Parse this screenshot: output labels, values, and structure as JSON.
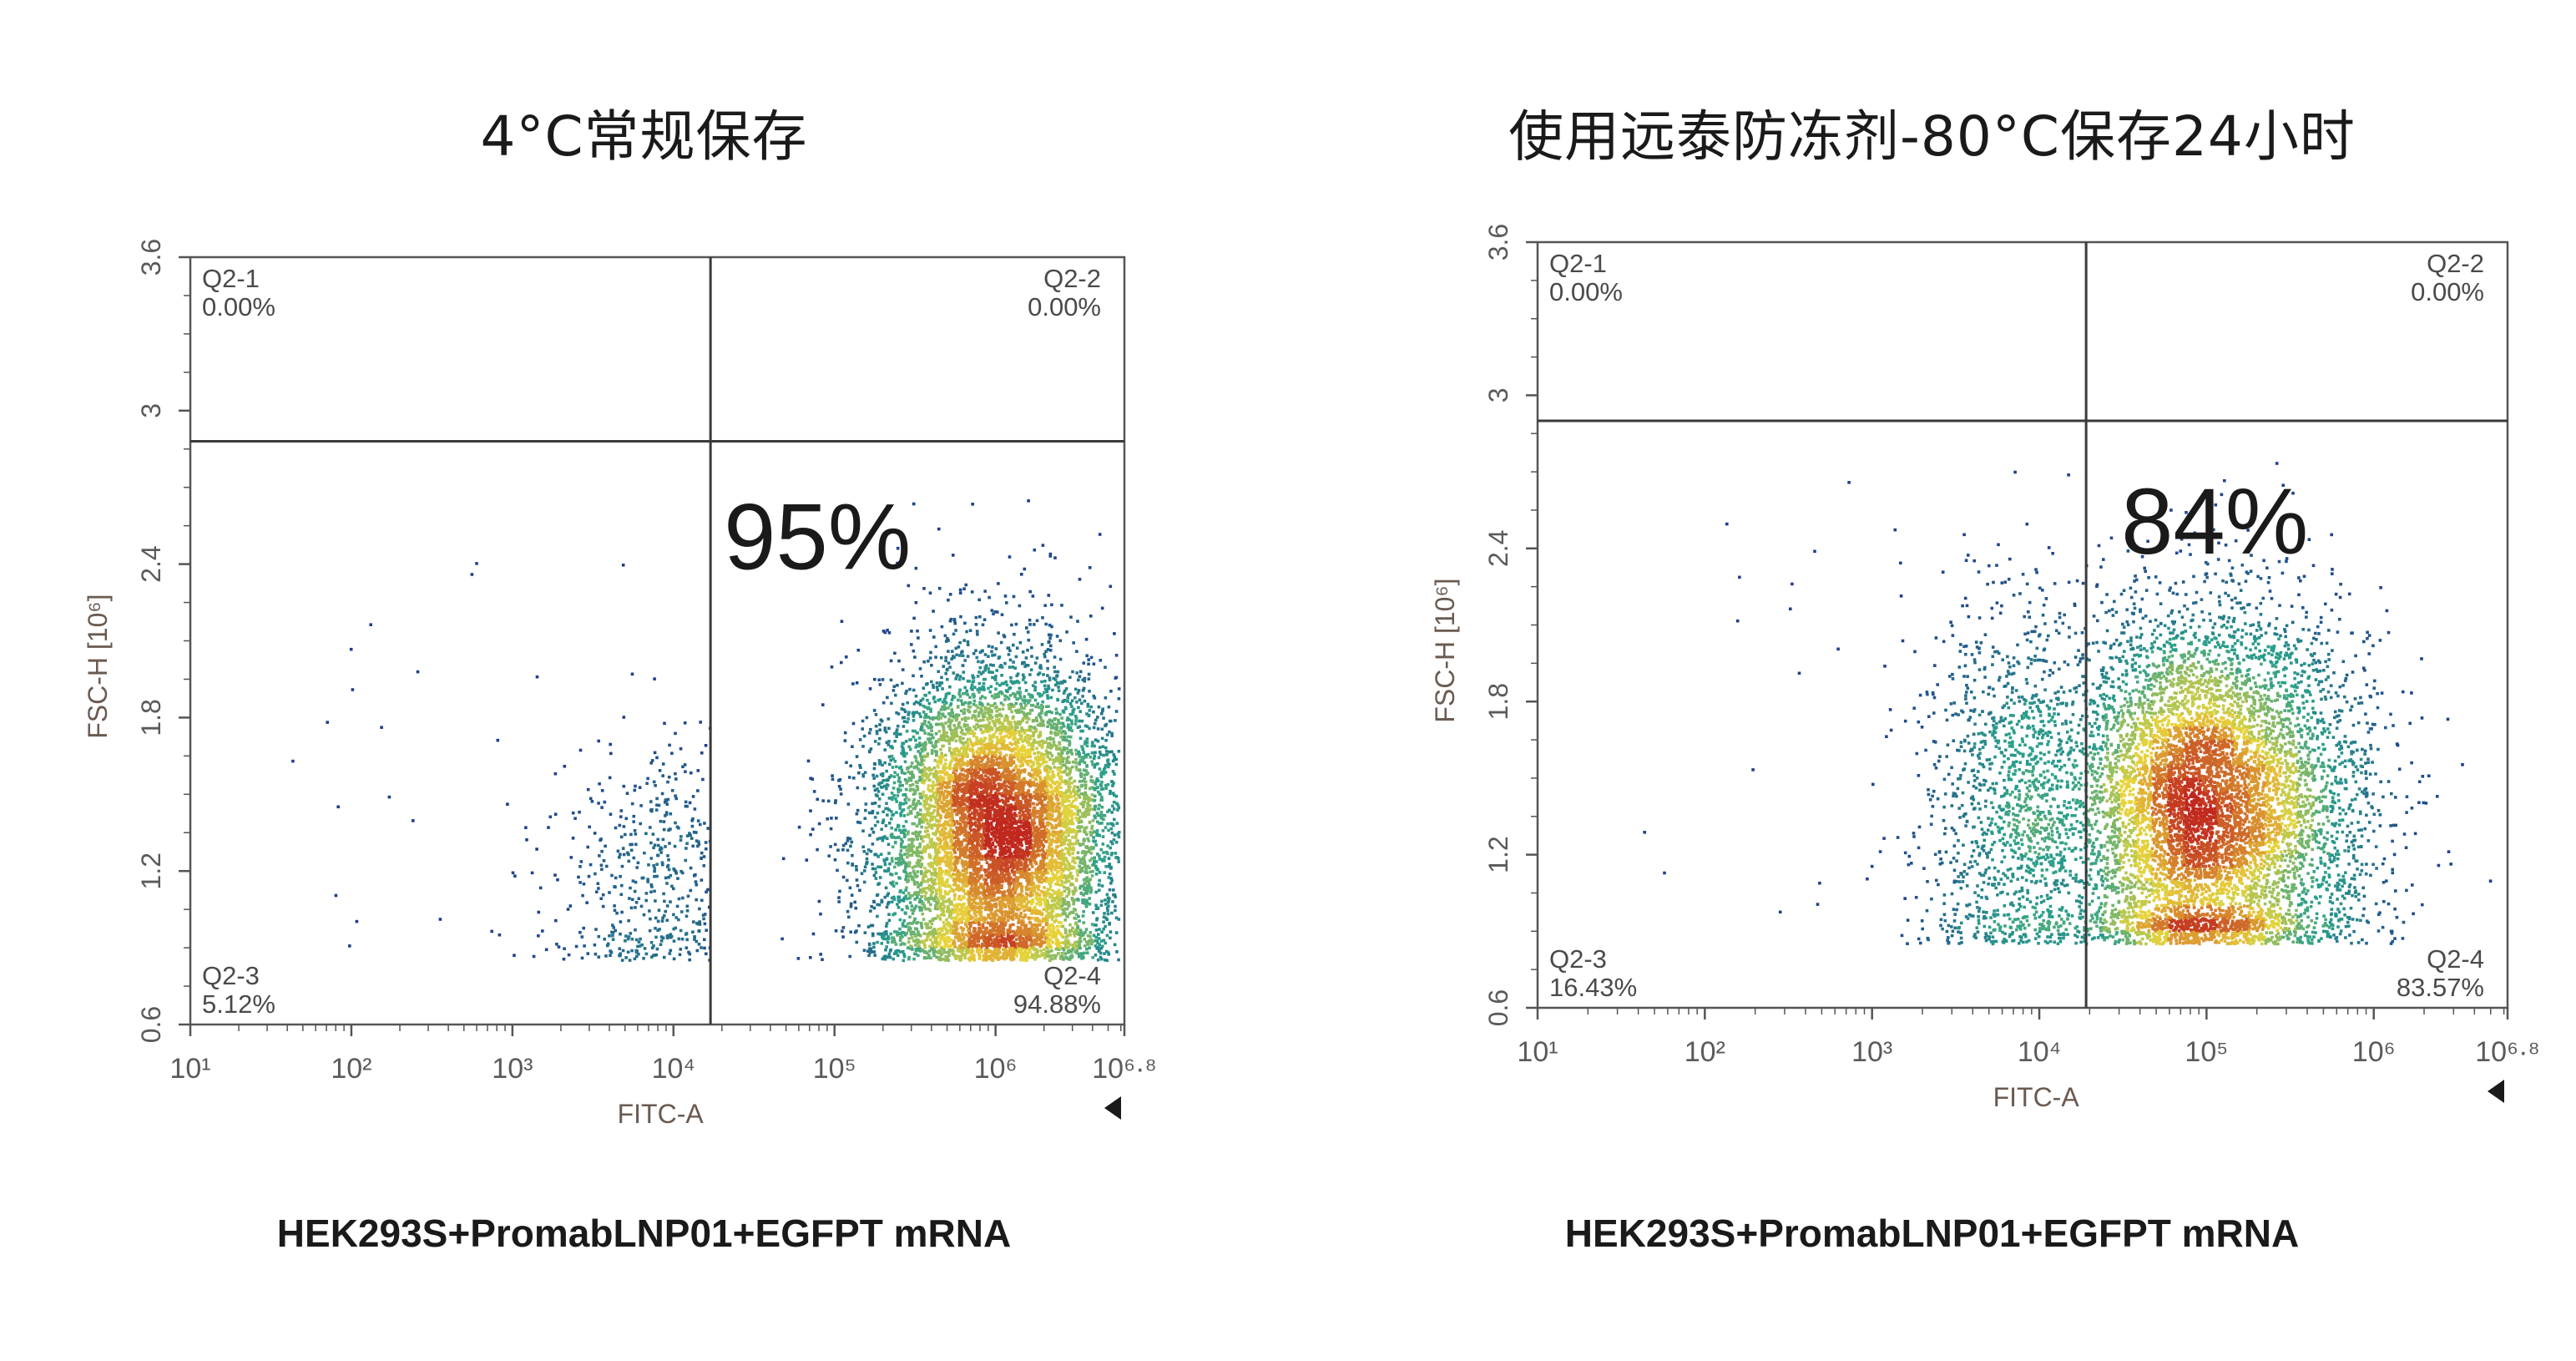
{
  "chart_data": [
    {
      "type": "scatter",
      "title": "4°C常规保存",
      "caption": "HEK293S+PromabLNP01+EGFPT mRNA",
      "xlabel": "FITC-A",
      "ylabel": "FSC-H [10⁶]",
      "x_scale": "log",
      "xlim": [
        1,
        6.8
      ],
      "ylim": [
        0.6,
        3.6
      ],
      "x_ticks": [
        "10¹",
        "10²",
        "10³",
        "10⁴",
        "10⁵",
        "10⁶",
        "10⁶·⁸"
      ],
      "y_ticks": [
        "0.6",
        "1.2",
        "1.8",
        "2.4",
        "3",
        "3.6"
      ],
      "gate": {
        "x_log": 4.23,
        "y": 2.88
      },
      "big_annotation": "95%",
      "quadrants": [
        {
          "id": "Q2-1",
          "value": "0.00%",
          "pos": "top-left"
        },
        {
          "id": "Q2-2",
          "value": "0.00%",
          "pos": "top-right"
        },
        {
          "id": "Q2-3",
          "value": "5.12%",
          "pos": "bottom-left"
        },
        {
          "id": "Q2-4",
          "value": "94.88%",
          "pos": "bottom-right"
        }
      ],
      "populations": [
        {
          "share": 0.9488,
          "center_x_log": 6.02,
          "sd_x_log": 0.38,
          "center_y": 1.35,
          "sd_y": 0.34,
          "floor_y": 0.85
        },
        {
          "share": 0.0512,
          "center_x_log": 3.9,
          "sd_x_log": 0.35,
          "center_y": 1.15,
          "sd_y": 0.28,
          "floor_y": 0.85
        }
      ]
    },
    {
      "type": "scatter",
      "title": "使用远泰防冻剂-80°C保存24小时",
      "caption": "HEK293S+PromabLNP01+EGFPT mRNA",
      "xlabel": "FITC-A",
      "ylabel": "FSC-H [10⁶]",
      "x_scale": "log",
      "xlim": [
        1,
        6.8
      ],
      "ylim": [
        0.6,
        3.6
      ],
      "x_ticks": [
        "10¹",
        "10²",
        "10³",
        "10⁴",
        "10⁵",
        "10⁶",
        "10⁶·⁸"
      ],
      "y_ticks": [
        "0.6",
        "1.2",
        "1.8",
        "2.4",
        "3",
        "3.6"
      ],
      "gate": {
        "x_log": 4.28,
        "y": 2.9
      },
      "big_annotation": "84%",
      "quadrants": [
        {
          "id": "Q2-1",
          "value": "0.00%",
          "pos": "top-left"
        },
        {
          "id": "Q2-2",
          "value": "0.00%",
          "pos": "top-right"
        },
        {
          "id": "Q2-3",
          "value": "16.43%",
          "pos": "bottom-left"
        },
        {
          "id": "Q2-4",
          "value": "83.57%",
          "pos": "bottom-right"
        }
      ],
      "populations": [
        {
          "share": 0.8357,
          "center_x_log": 5.0,
          "sd_x_log": 0.45,
          "center_y": 1.4,
          "sd_y": 0.38,
          "floor_y": 0.85
        },
        {
          "share": 0.1643,
          "center_x_log": 3.95,
          "sd_x_log": 0.33,
          "center_y": 1.4,
          "sd_y": 0.38,
          "floor_y": 0.85
        }
      ]
    }
  ],
  "colors": {
    "frame": "#555555",
    "gate": "#3a3a3a",
    "density_low": "#1f3c8c",
    "density_mid": "#2aa08a",
    "density_high": "#e8d43a",
    "density_peak": "#c0281e"
  }
}
